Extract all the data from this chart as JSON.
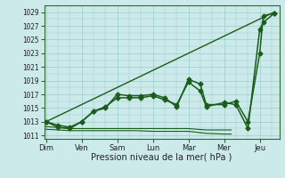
{
  "background_color": "#cceaea",
  "grid_color": "#99cccc",
  "line_color": "#1a5c1a",
  "title": "Pression niveau de la mer( hPa )",
  "yticks": [
    1011,
    1013,
    1015,
    1017,
    1019,
    1021,
    1023,
    1025,
    1027,
    1029
  ],
  "ylim": [
    1010.5,
    1030.0
  ],
  "xlim": [
    -0.05,
    6.55
  ],
  "xtick_labels": [
    "Dim",
    "Ven",
    "Sam",
    "Lun",
    "Mar",
    "Mer",
    "Jeu"
  ],
  "xtick_positions": [
    0,
    1,
    2,
    3,
    4,
    5,
    6
  ],
  "series_straight": {
    "x": [
      0.0,
      6.4
    ],
    "y": [
      1013.0,
      1029.0
    ],
    "marker": null,
    "linewidth": 1.0
  },
  "series1": {
    "x": [
      0.0,
      0.33,
      0.67,
      1.0,
      1.33,
      1.67,
      2.0,
      2.33,
      2.67,
      3.0,
      3.33,
      3.67,
      4.0,
      4.33,
      4.5,
      5.0,
      5.33,
      5.67,
      6.0,
      6.1,
      6.4
    ],
    "y": [
      1013.0,
      1012.5,
      1012.2,
      1013.0,
      1014.5,
      1015.0,
      1017.0,
      1016.8,
      1016.8,
      1017.0,
      1016.5,
      1015.2,
      1019.2,
      1018.5,
      1015.5,
      1015.5,
      1016.0,
      1013.0,
      1023.0,
      1028.5,
      1028.8
    ],
    "marker": "D",
    "markersize": 2.5,
    "linewidth": 1.1
  },
  "series2": {
    "x": [
      0.0,
      0.33,
      0.67,
      1.0,
      1.33,
      1.67,
      2.0,
      2.33,
      2.67,
      3.0,
      3.33,
      3.67,
      4.0,
      4.33,
      4.5,
      5.0,
      5.33,
      5.67,
      6.0,
      6.1,
      6.4
    ],
    "y": [
      1013.0,
      1012.2,
      1012.0,
      1013.0,
      1014.5,
      1015.2,
      1016.5,
      1016.5,
      1016.5,
      1016.8,
      1016.2,
      1015.5,
      1018.8,
      1017.5,
      1015.2,
      1015.8,
      1015.5,
      1012.0,
      1026.5,
      1027.5,
      1028.8
    ],
    "marker": "D",
    "markersize": 2.5,
    "linewidth": 1.1
  },
  "series3_flat": {
    "x": [
      0.0,
      0.67,
      1.0,
      1.5,
      2.0,
      2.5,
      3.0,
      3.5,
      4.0,
      4.5,
      5.0,
      5.2
    ],
    "y": [
      1012.3,
      1012.0,
      1012.0,
      1012.0,
      1012.0,
      1012.0,
      1012.0,
      1012.0,
      1012.0,
      1011.8,
      1011.8,
      1011.8
    ],
    "linewidth": 0.8
  },
  "series4_flat": {
    "x": [
      0.0,
      0.67,
      1.0,
      1.5,
      2.0,
      2.5,
      3.0,
      3.5,
      4.0,
      4.5,
      5.0,
      5.2
    ],
    "y": [
      1011.9,
      1011.7,
      1011.7,
      1011.7,
      1011.7,
      1011.7,
      1011.6,
      1011.6,
      1011.6,
      1011.3,
      1011.2,
      1011.2
    ],
    "linewidth": 0.8
  }
}
